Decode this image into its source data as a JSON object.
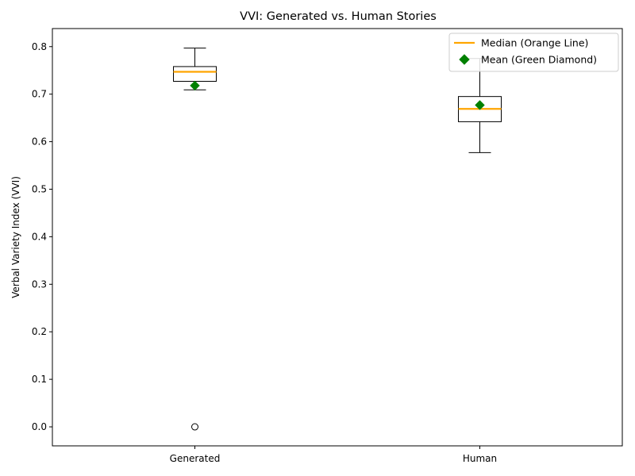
{
  "chart_data": {
    "type": "box",
    "title": "VVI: Generated vs. Human Stories",
    "xlabel": "",
    "ylabel": "Verbal Variety Index (VVI)",
    "ylim": [
      -0.04,
      0.838
    ],
    "yticks": [
      "0.0",
      "0.1",
      "0.2",
      "0.3",
      "0.4",
      "0.5",
      "0.6",
      "0.7",
      "0.8"
    ],
    "grid": false,
    "legend_position": "top-right",
    "legend": [
      {
        "label": "Median (Orange Line)",
        "marker": "line",
        "color": "#FFA500"
      },
      {
        "label": "Mean (Green Diamond)",
        "marker": "diamond",
        "color": "#008000"
      }
    ],
    "categories": [
      "Generated",
      "Human"
    ],
    "boxes": [
      {
        "name": "Generated",
        "whisker_low": 0.709,
        "q1": 0.727,
        "median": 0.747,
        "q3": 0.758,
        "whisker_high": 0.797,
        "mean": 0.718,
        "outliers": [
          0.0
        ]
      },
      {
        "name": "Human",
        "whisker_low": 0.577,
        "q1": 0.642,
        "median": 0.669,
        "q3": 0.695,
        "whisker_high": 0.775,
        "mean": 0.677,
        "outliers": []
      }
    ],
    "colors": {
      "median": "#FFA500",
      "mean": "#008000",
      "box": "#000000"
    }
  }
}
